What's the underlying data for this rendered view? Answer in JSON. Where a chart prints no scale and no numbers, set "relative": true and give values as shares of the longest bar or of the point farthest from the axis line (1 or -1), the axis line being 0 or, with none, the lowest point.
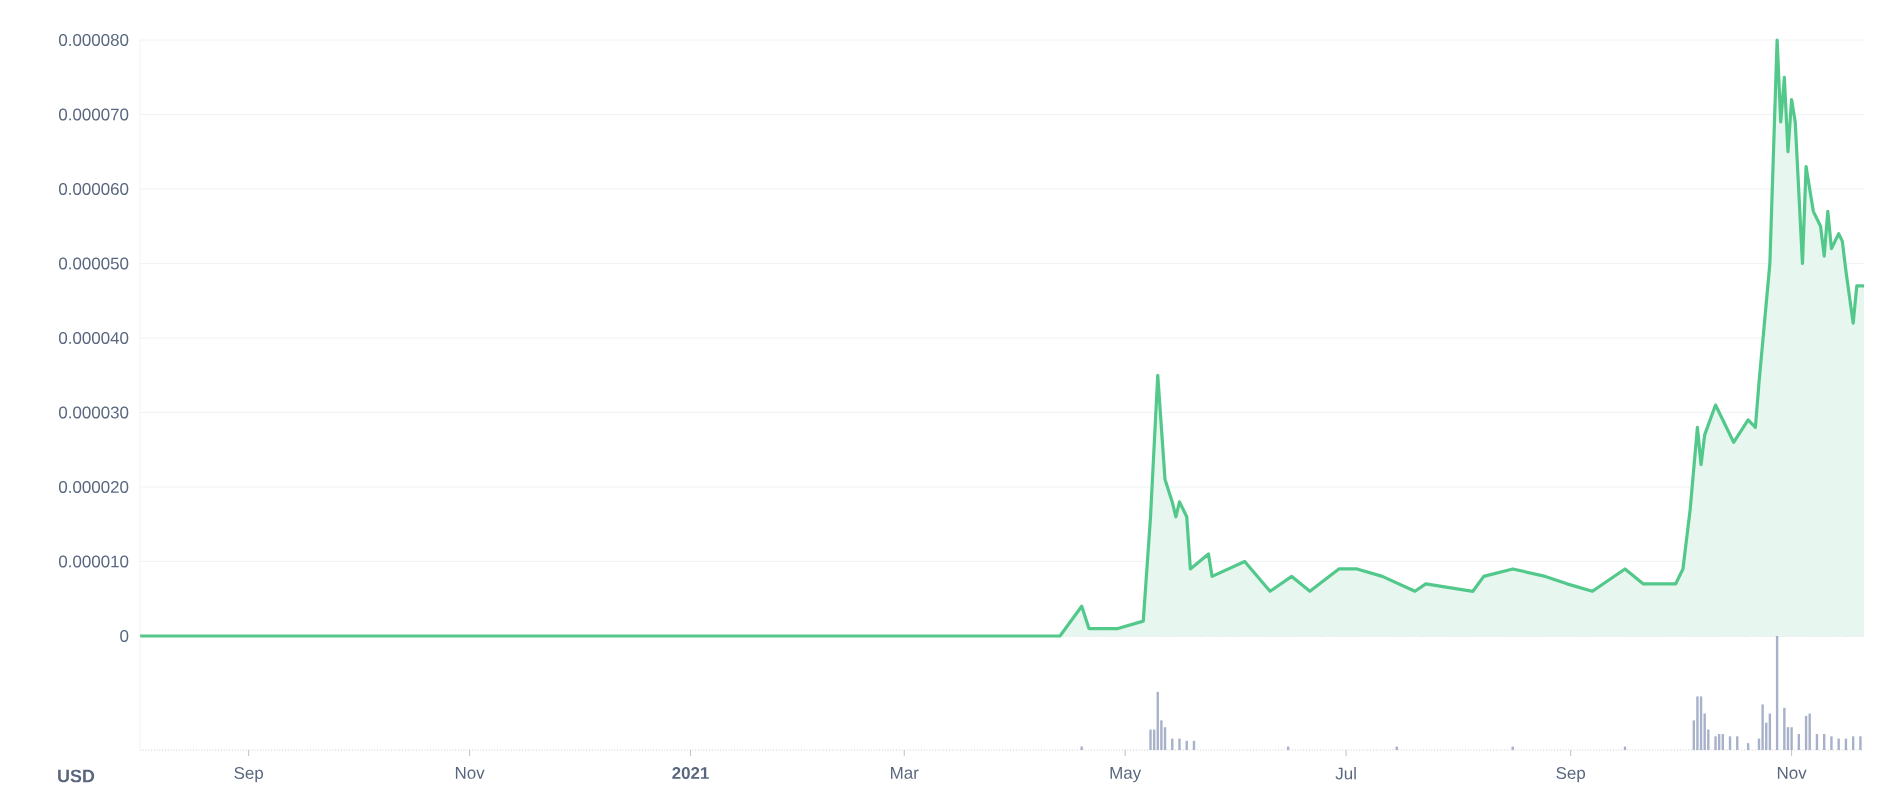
{
  "chart_data": [
    {
      "type": "area",
      "color": "#52c98a",
      "grid": "y",
      "tick_labels": "y",
      "xlim": [
        "2020-08-02",
        "2021-11-21"
      ],
      "ylim": [
        0,
        8e-05
      ],
      "yticks": [
        0,
        {
          "value": 1e-05,
          "label": "0.000010"
        },
        {
          "value": 2e-05,
          "label": "0.000020"
        },
        {
          "value": 3e-05,
          "label": "0.000030"
        },
        {
          "value": 4e-05,
          "label": "0.000040"
        },
        {
          "value": 5e-05,
          "label": "0.000050"
        },
        {
          "value": 6e-05,
          "label": "0.000060"
        },
        {
          "value": 7e-05,
          "label": "0.000070"
        },
        {
          "value": 8e-05,
          "label": "0.000080"
        }
      ],
      "annotations": [
        "USD"
      ],
      "x": [
        "2020-08-02",
        "2021-04-13",
        "2021-04-19",
        "2021-04-21",
        "2021-04-29",
        "2021-05-06",
        "2021-05-08",
        "2021-05-10",
        "2021-05-12",
        "2021-05-14",
        "2021-05-15",
        "2021-05-16",
        "2021-05-18",
        "2021-05-19",
        "2021-05-24",
        "2021-05-25",
        "2021-06-03",
        "2021-06-10",
        "2021-06-16",
        "2021-06-21",
        "2021-06-29",
        "2021-07-04",
        "2021-07-11",
        "2021-07-20",
        "2021-07-23",
        "2021-08-05",
        "2021-08-08",
        "2021-08-16",
        "2021-08-25",
        "2021-08-31",
        "2021-09-07",
        "2021-09-16",
        "2021-09-21",
        "2021-09-30",
        "2021-10-02",
        "2021-10-04",
        "2021-10-06",
        "2021-10-07",
        "2021-10-08",
        "2021-10-11",
        "2021-10-16",
        "2021-10-20",
        "2021-10-22",
        "2021-10-23",
        "2021-10-26",
        "2021-10-28",
        "2021-10-29",
        "2021-10-30",
        "2021-10-31",
        "2021-11-01",
        "2021-11-02",
        "2021-11-04",
        "2021-11-05",
        "2021-11-07",
        "2021-11-09",
        "2021-11-10",
        "2021-11-11",
        "2021-11-12",
        "2021-11-14",
        "2021-11-15",
        "2021-11-16",
        "2021-11-18",
        "2021-11-19",
        "2021-11-21"
      ],
      "values": [
        0,
        0,
        4e-06,
        1e-06,
        1e-06,
        2e-06,
        1.6e-05,
        3.5e-05,
        2.1e-05,
        1.8e-05,
        1.6e-05,
        1.8e-05,
        1.6e-05,
        9e-06,
        1.1e-05,
        8e-06,
        1e-05,
        6e-06,
        8e-06,
        6e-06,
        9e-06,
        9e-06,
        8e-06,
        6e-06,
        7e-06,
        6e-06,
        8e-06,
        9e-06,
        8e-06,
        7e-06,
        6e-06,
        9e-06,
        7e-06,
        7e-06,
        9e-06,
        1.7e-05,
        2.8e-05,
        2.3e-05,
        2.7e-05,
        3.1e-05,
        2.6e-05,
        2.9e-05,
        2.8e-05,
        3.4e-05,
        5e-05,
        8e-05,
        6.9e-05,
        7.5e-05,
        6.5e-05,
        7.2e-05,
        6.9e-05,
        5e-05,
        6.3e-05,
        5.7e-05,
        5.5e-05,
        5.1e-05,
        5.7e-05,
        5.2e-05,
        5.4e-05,
        5.3e-05,
        4.9e-05,
        4.2e-05,
        4.7e-05,
        4.7e-05
      ]
    },
    {
      "type": "bar",
      "color": "#a7b1c9",
      "relative": true,
      "xlim": [
        "2020-08-02",
        "2021-11-21"
      ],
      "xticks": [
        {
          "value": "2020-09-01",
          "label": "Sep"
        },
        {
          "value": "2020-11-01",
          "label": "Nov"
        },
        {
          "value": "2021-01-01",
          "label": "2021"
        },
        {
          "value": "2021-03-01",
          "label": "Mar"
        },
        {
          "value": "2021-05-01",
          "label": "May"
        },
        {
          "value": "2021-07-01",
          "label": "Jul"
        },
        {
          "value": "2021-09-01",
          "label": "Sep"
        },
        {
          "value": "2021-11-01",
          "label": "Nov"
        }
      ],
      "x": [
        "2021-04-19",
        "2021-05-08",
        "2021-05-09",
        "2021-05-10",
        "2021-05-11",
        "2021-05-12",
        "2021-05-14",
        "2021-05-16",
        "2021-05-18",
        "2021-05-20",
        "2021-06-15",
        "2021-07-15",
        "2021-08-16",
        "2021-09-16",
        "2021-10-05",
        "2021-10-06",
        "2021-10-07",
        "2021-10-08",
        "2021-10-09",
        "2021-10-11",
        "2021-10-12",
        "2021-10-13",
        "2021-10-15",
        "2021-10-17",
        "2021-10-20",
        "2021-10-23",
        "2021-10-24",
        "2021-10-25",
        "2021-10-26",
        "2021-10-28",
        "2021-10-30",
        "2021-10-31",
        "2021-11-01",
        "2021-11-03",
        "2021-11-05",
        "2021-11-06",
        "2021-11-08",
        "2021-11-10",
        "2021-11-12",
        "2021-11-14",
        "2021-11-16",
        "2021-11-18",
        "2021-11-20"
      ],
      "values": [
        0.03,
        0.18,
        0.18,
        0.51,
        0.26,
        0.2,
        0.1,
        0.1,
        0.08,
        0.08,
        0.03,
        0.03,
        0.03,
        0.03,
        0.26,
        0.47,
        0.47,
        0.32,
        0.18,
        0.12,
        0.14,
        0.14,
        0.12,
        0.12,
        0.06,
        0.1,
        0.4,
        0.24,
        0.32,
        1.0,
        0.37,
        0.2,
        0.2,
        0.14,
        0.3,
        0.32,
        0.14,
        0.14,
        0.12,
        0.1,
        0.1,
        0.12,
        0.12
      ]
    }
  ]
}
